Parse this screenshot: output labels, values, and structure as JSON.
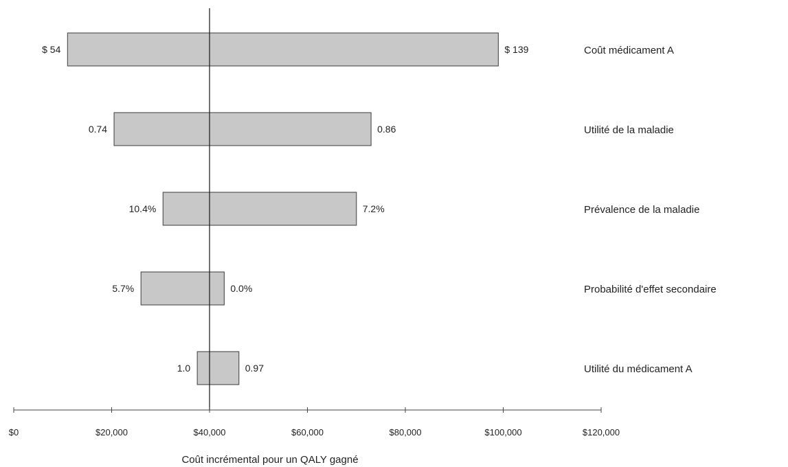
{
  "chart_data": {
    "type": "bar",
    "orientation": "horizontal",
    "variant": "tornado",
    "title": "",
    "xlabel": "Coût incrémental pour un QALY gagné",
    "ylabel": "",
    "xlim": [
      0,
      120000
    ],
    "baseline": 40000,
    "grid": false,
    "legend": "none",
    "bar_color": "#c8c8c8",
    "bar_edge_color": "#555555",
    "x_ticks": [
      {
        "value": 0,
        "label": "$0"
      },
      {
        "value": 20000,
        "label": "$20,000"
      },
      {
        "value": 40000,
        "label": "$40,000"
      },
      {
        "value": 60000,
        "label": "$60,000"
      },
      {
        "value": 80000,
        "label": "$80,000"
      },
      {
        "value": 100000,
        "label": "$100,000"
      },
      {
        "value": 120000,
        "label": "$120,000"
      }
    ],
    "categories": [
      "Coût médicament A",
      "Utilité de la maladie",
      "Prévalence de la maladie",
      "Probabilité d'effet secondaire",
      "Utilité du médicament A"
    ],
    "bars": [
      {
        "low": 11000,
        "high": 99000,
        "low_label": "$ 54",
        "high_label": "$ 139"
      },
      {
        "low": 20500,
        "high": 73000,
        "low_label": "0.74",
        "high_label": "0.86"
      },
      {
        "low": 30500,
        "high": 70000,
        "low_label": "10.4%",
        "high_label": "7.2%"
      },
      {
        "low": 26000,
        "high": 43000,
        "low_label": "5.7%",
        "high_label": "0.0%"
      },
      {
        "low": 37500,
        "high": 46000,
        "low_label": "1.0",
        "high_label": "0.97"
      }
    ]
  }
}
